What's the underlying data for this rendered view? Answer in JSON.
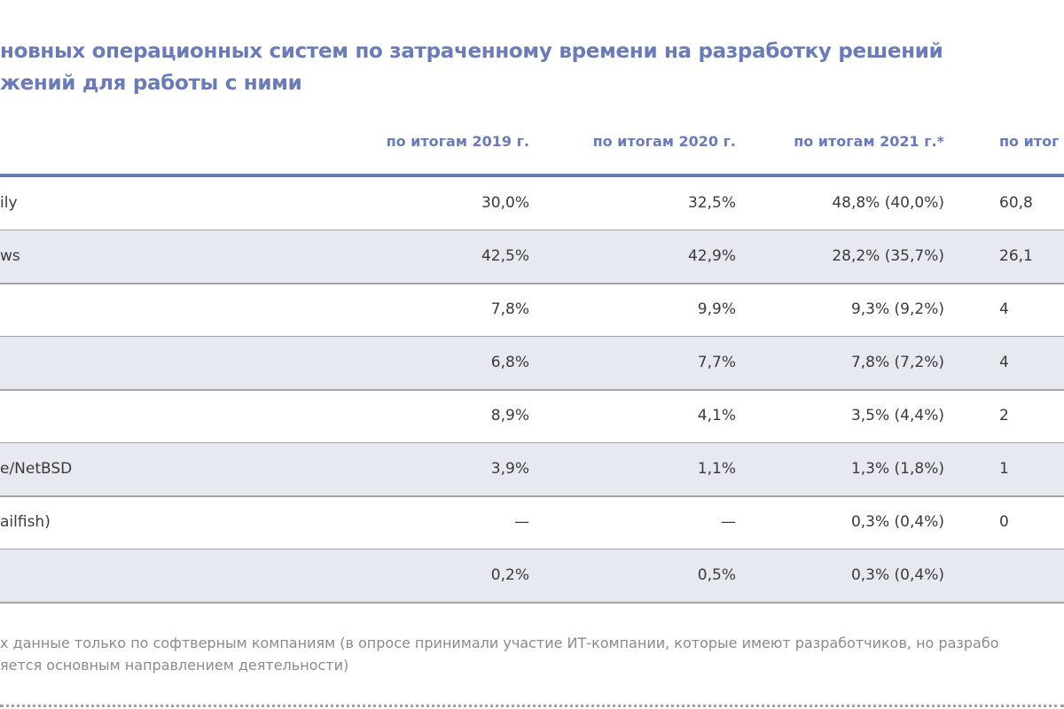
{
  "title": {
    "line1": "новных операционных систем по затраченному времени на разработку решений",
    "line2": "жений для работы с ними"
  },
  "columns": [
    "по итогам 2019 г.",
    "по итогам 2020 г.",
    "по итогам 2021 г.*",
    "по итог"
  ],
  "rows": [
    {
      "name": "ily",
      "v2019": "30,0%",
      "v2020": "32,5%",
      "v2021": "48,8% (40,0%)",
      "v2022": "60,8"
    },
    {
      "name": "ws",
      "v2019": "42,5%",
      "v2020": "42,9%",
      "v2021": "28,2% (35,7%)",
      "v2022": "26,1"
    },
    {
      "name": "",
      "v2019": "7,8%",
      "v2020": "9,9%",
      "v2021": "9,3% (9,2%)",
      "v2022": "4"
    },
    {
      "name": "",
      "v2019": "6,8%",
      "v2020": "7,7%",
      "v2021": "7,8% (7,2%)",
      "v2022": "4"
    },
    {
      "name": "",
      "v2019": "8,9%",
      "v2020": "4,1%",
      "v2021": "3,5% (4,4%)",
      "v2022": "2"
    },
    {
      "name": "e/NetBSD",
      "v2019": "3,9%",
      "v2020": "1,1%",
      "v2021": "1,3% (1,8%)",
      "v2022": "1"
    },
    {
      "name": "ailfish)",
      "v2019": "—",
      "v2020": "—",
      "v2021": "0,3% (0,4%)",
      "v2022": "0"
    },
    {
      "name": "",
      "v2019": "0,2%",
      "v2020": "0,5%",
      "v2021": "0,3% (0,4%)",
      "v2022": ""
    }
  ],
  "footnote": {
    "line1": "х данные только по софтверным компаниям (в опросе принимали участие ИТ-компании, которые имеют разработчиков, но разрабо",
    "line2": "яется основным направлением деятельности)"
  }
}
